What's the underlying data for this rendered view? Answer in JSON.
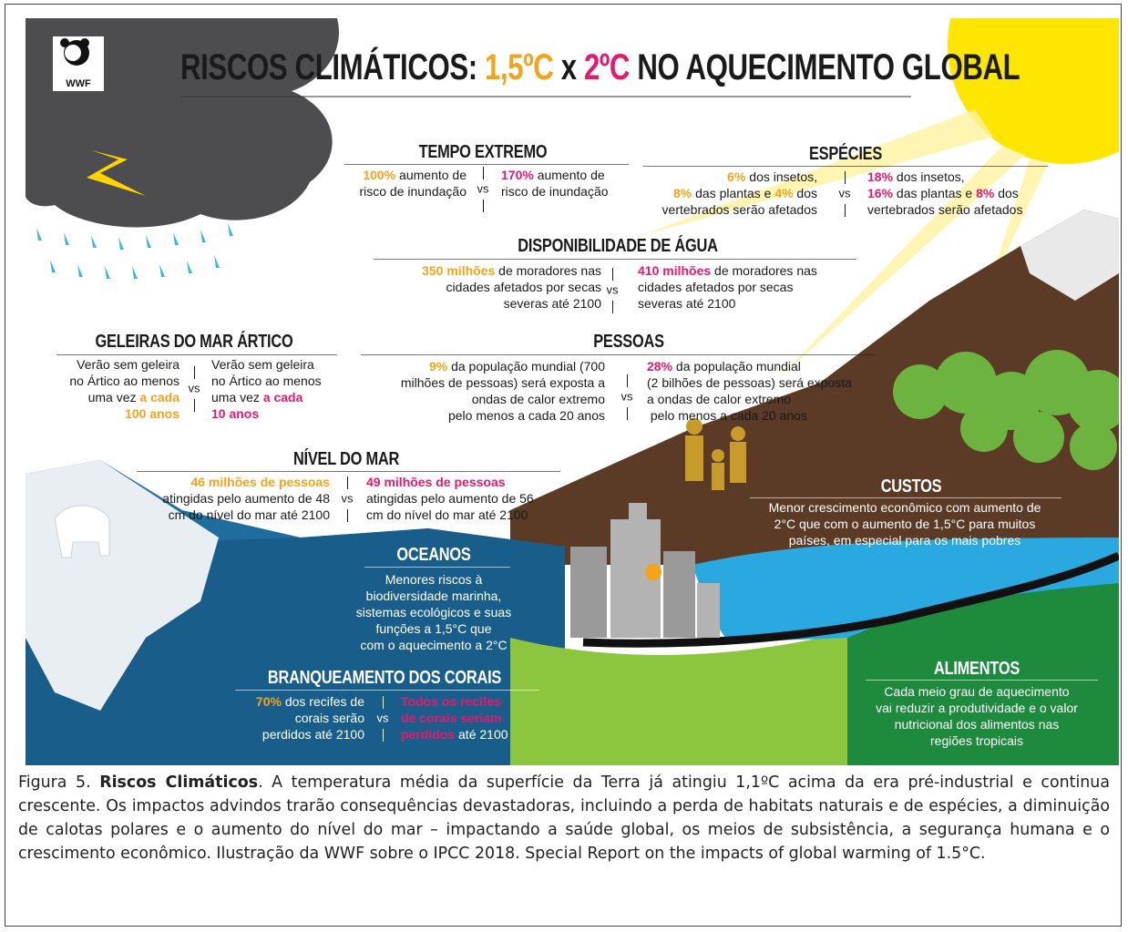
{
  "header": {
    "logo": "WWF",
    "title_parts": [
      {
        "text": "RISCOS CLIMÁTICOS: ",
        "color": "#1a1a1a"
      },
      {
        "text": "1,5ºC",
        "color": "#f5a31a"
      },
      {
        "text": " x ",
        "color": "#1a1a1a"
      },
      {
        "text": "2ºC",
        "color": "#e6196e"
      },
      {
        "text": " NO AQUECIMENTO GLOBAL",
        "color": "#1a1a1a"
      }
    ]
  },
  "highlight_colors": {
    "left": "#f5a31a",
    "right": "#e6196e"
  },
  "sections": [
    {
      "title": "TEMPO EXTREMO",
      "vs": "vs",
      "text_color": "#1a1a1a",
      "left": [
        [
          {
            "text": "100%",
            "hl": true
          },
          {
            "text": " aumento de",
            "hl": false
          }
        ],
        [
          {
            "text": "risco de inundação",
            "hl": false
          }
        ]
      ],
      "right": [
        [
          {
            "text": "170%",
            "hl": true
          },
          {
            "text": " aumento de",
            "hl": false
          }
        ],
        [
          {
            "text": "risco de inundação",
            "hl": false
          }
        ]
      ]
    },
    {
      "title": "ESPÉCIES",
      "vs": "vs",
      "text_color": "#1a1a1a",
      "left": [
        [
          {
            "text": "6%",
            "hl": true
          },
          {
            "text": " dos insetos,",
            "hl": false
          }
        ],
        [
          {
            "text": "8%",
            "hl": true
          },
          {
            "text": " das plantas e ",
            "hl": false
          },
          {
            "text": "4%",
            "hl": true
          },
          {
            "text": " dos",
            "hl": false
          }
        ],
        [
          {
            "text": "vertebrados serão afetados",
            "hl": false
          }
        ]
      ],
      "right": [
        [
          {
            "text": "18%",
            "hl": true
          },
          {
            "text": " dos insetos,",
            "hl": false
          }
        ],
        [
          {
            "text": "16%",
            "hl": true
          },
          {
            "text": " das plantas e ",
            "hl": false
          },
          {
            "text": "8%",
            "hl": true
          },
          {
            "text": " dos",
            "hl": false
          }
        ],
        [
          {
            "text": "vertebrados serão afetados",
            "hl": false
          }
        ]
      ]
    },
    {
      "title": "DISPONIBILIDADE DE ÁGUA",
      "vs": "vs",
      "text_color": "#1a1a1a",
      "left": [
        [
          {
            "text": "350 milhões",
            "hl": true
          },
          {
            "text": " de moradores nas",
            "hl": false
          }
        ],
        [
          {
            "text": "cidades afetados por secas",
            "hl": false
          }
        ],
        [
          {
            "text": "severas até 2100",
            "hl": false
          }
        ]
      ],
      "right": [
        [
          {
            "text": "410 milhões",
            "hl": true
          },
          {
            "text": " de moradores nas",
            "hl": false
          }
        ],
        [
          {
            "text": "cidades afetados por secas",
            "hl": false
          }
        ],
        [
          {
            "text": "severas até 2100",
            "hl": false
          }
        ]
      ]
    },
    {
      "title": "GELEIRAS DO MAR ÁRTICO",
      "vs": "vs",
      "text_color": "#1a1a1a",
      "left": [
        [
          {
            "text": "Verão sem geleira",
            "hl": false
          }
        ],
        [
          {
            "text": "no Ártico ao menos",
            "hl": false
          }
        ],
        [
          {
            "text": "uma vez ",
            "hl": false
          },
          {
            "text": "a cada",
            "hl": true
          }
        ],
        [
          {
            "text": "100 anos",
            "hl": true
          }
        ]
      ],
      "right": [
        [
          {
            "text": "Verão sem geleira",
            "hl": false
          }
        ],
        [
          {
            "text": "no Ártico ao menos",
            "hl": false
          }
        ],
        [
          {
            "text": "uma vez ",
            "hl": false
          },
          {
            "text": "a cada",
            "hl": true
          }
        ],
        [
          {
            "text": "10 anos",
            "hl": true
          }
        ]
      ]
    },
    {
      "title": "PESSOAS",
      "vs": "vs",
      "text_color": "#1a1a1a",
      "left": [
        [
          {
            "text": "9%",
            "hl": true
          },
          {
            "text": " da população mundial (700",
            "hl": false
          }
        ],
        [
          {
            "text": "milhões de pessoas) será exposta a",
            "hl": false
          }
        ],
        [
          {
            "text": "ondas de calor extremo",
            "hl": false
          }
        ],
        [
          {
            "text": "pelo menos a cada 20 anos",
            "hl": false
          }
        ]
      ],
      "right": [
        [
          {
            "text": "28%",
            "hl": true
          },
          {
            "text": " da população mundial",
            "hl": false
          }
        ],
        [
          {
            "text": "(2 bilhões de pessoas) será exposta",
            "hl": false
          }
        ],
        [
          {
            "text": "a ondas de calor extremo",
            "hl": false
          }
        ],
        [
          {
            "text": " pelo menos a cada 20 anos",
            "hl": false
          }
        ]
      ]
    },
    {
      "title": "NÍVEL DO MAR",
      "vs": "vs",
      "text_color": "#1a1a1a",
      "left": [
        [
          {
            "text": "46 milhões de pessoas",
            "hl": true
          }
        ],
        [
          {
            "text": "atingidas pelo aumento de 48",
            "hl": false
          }
        ],
        [
          {
            "text": "cm do nível do mar até 2100",
            "hl": false
          }
        ]
      ],
      "right": [
        [
          {
            "text": "49 milhões de pessoas",
            "hl": true
          }
        ],
        [
          {
            "text": "atingidas pelo aumento de 56",
            "hl": false
          }
        ],
        [
          {
            "text": "cm do nível do mar até 2100",
            "hl": false
          }
        ]
      ]
    },
    {
      "title": "BRANQUEAMENTO DOS CORAIS",
      "vs": "vs",
      "text_color": "#ffffff",
      "left": [
        [
          {
            "text": "70%",
            "hl": true
          },
          {
            "text": " dos recifes de",
            "hl": false
          }
        ],
        [
          {
            "text": "corais serão",
            "hl": false
          }
        ],
        [
          {
            "text": "perdidos até 2100",
            "hl": false
          }
        ]
      ],
      "right": [
        [
          {
            "text": "Todos os recifes",
            "hl": true
          }
        ],
        [
          {
            "text": "de corais seriam",
            "hl": true
          }
        ],
        [
          {
            "text": "perdidos",
            "hl": true
          },
          {
            "text": " até 2100",
            "hl": false
          }
        ]
      ]
    },
    {
      "title": "CUSTOS",
      "text_color": "#ffffff",
      "lines": [
        "Menor crescimento econômico com aumento de",
        "2°C que com o aumento de 1,5°C para muitos",
        "países, em especial para os mais pobres"
      ]
    },
    {
      "title": "OCEANOS",
      "text_color": "#ffffff",
      "lines": [
        "Menores riscos à",
        "biodiversidade marinha,",
        "sistemas ecológicos e suas",
        "funções a 1,5°C que",
        "com o aquecimento a 2°C"
      ]
    },
    {
      "title": "ALIMENTOS",
      "text_color": "#ffffff",
      "lines": [
        "Cada meio grau de aquecimento",
        "vai reduzir a produtividade e o valor",
        "nutricional dos alimentos nas",
        "regiões tropicais"
      ]
    }
  ],
  "caption": {
    "label": "Figura 5. ",
    "bold": "Riscos Climáticos",
    "text": ". A temperatura média da superfície da Terra já atingiu 1,1ºC acima da era pré-industrial e continua crescente. Os impactos advindos trarão consequências devastadoras, incluindo a perda de habitats naturais e de espécies, a diminuição de calotas polares e o aumento do nível do mar – impactando a saúde global, os meios de subsistência, a segurança humana e o crescimento econômico. Ilustração da WWF sobre o IPCC 2018. Special Report on the impacts of global warming of 1.5°C."
  }
}
